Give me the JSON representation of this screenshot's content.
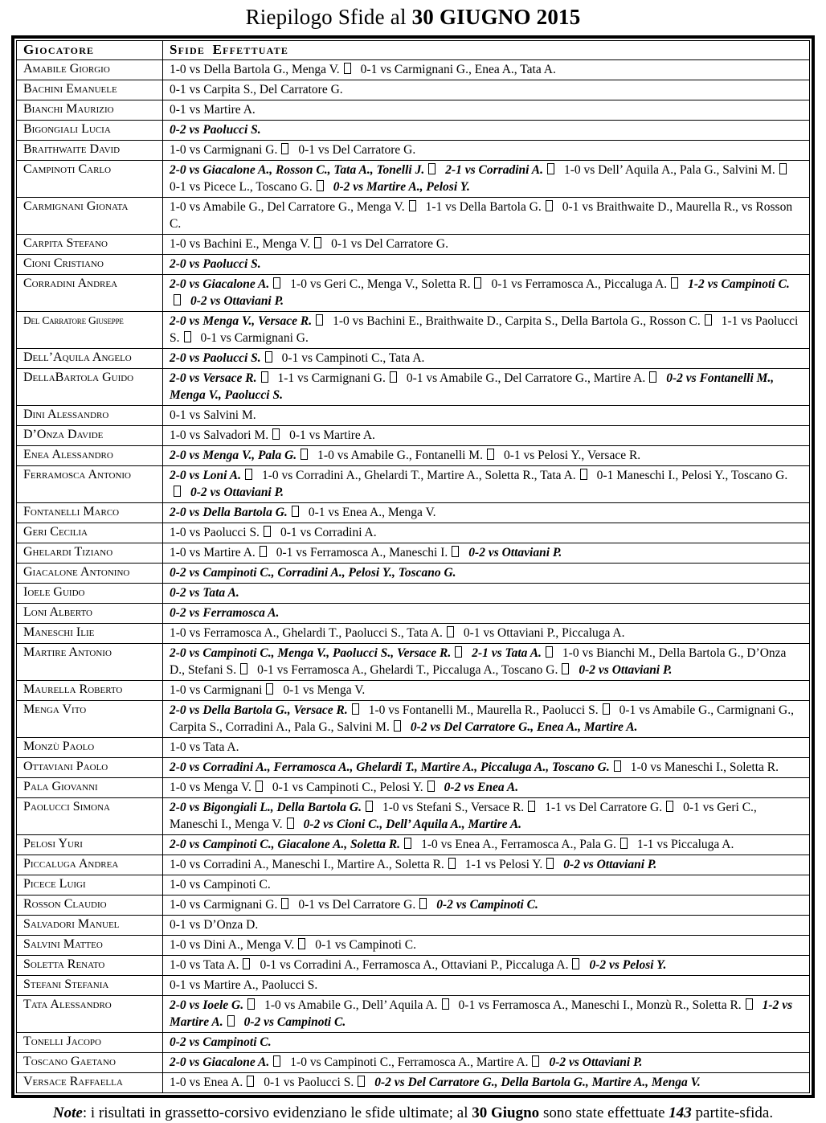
{
  "title": {
    "normal": "Riepilogo Sfide al ",
    "bold": "30 GIUGNO 2015"
  },
  "separator_icon": "empty-box-glyph",
  "colors": {
    "text": "#000000",
    "background": "#ffffff",
    "border": "#000000"
  },
  "table": {
    "col_player": "Giocatore",
    "col_results": "Sfide Effettuate",
    "rows": [
      {
        "player": "Amabile Giorgio",
        "segments": [
          {
            "text": "1-0 vs Della Bartola G., Menga V.",
            "ultimate": false
          },
          {
            "text": "0-1 vs Carmignani G., Enea A., Tata A.",
            "ultimate": false
          }
        ]
      },
      {
        "player": "Bachini Emanuele",
        "segments": [
          {
            "text": "0-1 vs Carpita S., Del Carratore G.",
            "ultimate": false
          }
        ]
      },
      {
        "player": "Bianchi Maurizio",
        "segments": [
          {
            "text": "0-1 vs Martire A.",
            "ultimate": false
          }
        ]
      },
      {
        "player": "Bigongiali Lucia",
        "segments": [
          {
            "text": "0-2 vs Paolucci S.",
            "ultimate": true
          }
        ]
      },
      {
        "player": "Braithwaite David",
        "segments": [
          {
            "text": "1-0 vs Carmignani G.",
            "ultimate": false
          },
          {
            "text": "0-1 vs Del Carratore G.",
            "ultimate": false
          }
        ]
      },
      {
        "player": "Campinoti Carlo",
        "segments": [
          {
            "text": "2-0 vs Giacalone A., Rosson C., Tata A., Tonelli J.",
            "ultimate": true
          },
          {
            "text": "2-1 vs Corradini A.",
            "ultimate": true
          },
          {
            "text": "1-0 vs Dell’ Aquila A., Pala G., Salvini M.",
            "ultimate": false
          },
          {
            "text": "0-1 vs Picece L., Toscano G.",
            "ultimate": false
          },
          {
            "text": "0-2 vs Martire A., Pelosi Y.",
            "ultimate": true
          }
        ]
      },
      {
        "player": "Carmignani Gionata",
        "segments": [
          {
            "text": "1-0 vs Amabile G., Del Carratore G., Menga V.",
            "ultimate": false
          },
          {
            "text": "1-1 vs Della Bartola G.",
            "ultimate": false
          },
          {
            "text": "0-1 vs Braithwaite D., Maurella R., vs Rosson C.",
            "ultimate": false
          }
        ]
      },
      {
        "player": "Carpita Stefano",
        "segments": [
          {
            "text": "1-0 vs Bachini E., Menga V.",
            "ultimate": false
          },
          {
            "text": "0-1 vs Del Carratore G.",
            "ultimate": false
          }
        ]
      },
      {
        "player": "Cioni Cristiano",
        "segments": [
          {
            "text": "2-0 vs Paolucci S.",
            "ultimate": true
          }
        ]
      },
      {
        "player": "Corradini Andrea",
        "segments": [
          {
            "text": "2-0 vs Giacalone A.",
            "ultimate": true
          },
          {
            "text": "1-0 vs Geri C., Menga V., Soletta R.",
            "ultimate": false
          },
          {
            "text": "0-1 vs Ferramosca A., Piccaluga A.",
            "ultimate": false
          },
          {
            "text": "1-2 vs Campinoti C.",
            "ultimate": true
          },
          {
            "text": "0-2 vs Ottaviani P.",
            "ultimate": true
          }
        ]
      },
      {
        "player": "Del Carratore Giuseppe",
        "segments": [
          {
            "text": "2-0 vs Menga V., Versace R.",
            "ultimate": true
          },
          {
            "text": "1-0 vs Bachini E., Braithwaite D., Carpita S., Della Bartola G., Rosson C.",
            "ultimate": false
          },
          {
            "text": "1-1 vs Paolucci S.",
            "ultimate": false
          },
          {
            "text": "0-1 vs Carmignani G.",
            "ultimate": false
          }
        ]
      },
      {
        "player": "Dell’Aquila Angelo",
        "segments": [
          {
            "text": "2-0 vs Paolucci S.",
            "ultimate": true
          },
          {
            "text": "0-1 vs Campinoti C., Tata A.",
            "ultimate": false
          }
        ]
      },
      {
        "player": "DellaBartola Guido",
        "segments": [
          {
            "text": "2-0 vs Versace R.",
            "ultimate": true
          },
          {
            "text": "1-1 vs Carmignani G.",
            "ultimate": false
          },
          {
            "text": "0-1 vs Amabile G., Del Carratore G., Martire A.",
            "ultimate": false
          },
          {
            "text": "0-2 vs Fontanelli M., Menga V., Paolucci S.",
            "ultimate": true
          }
        ]
      },
      {
        "player": "Dini Alessandro",
        "segments": [
          {
            "text": "0-1 vs Salvini M.",
            "ultimate": false
          }
        ]
      },
      {
        "player": "D’Onza Davide",
        "segments": [
          {
            "text": "1-0 vs Salvadori M.",
            "ultimate": false
          },
          {
            "text": "0-1 vs Martire A.",
            "ultimate": false
          }
        ]
      },
      {
        "player": "Enea Alessandro",
        "segments": [
          {
            "text": "2-0 vs Menga V., Pala G.",
            "ultimate": true
          },
          {
            "text": "1-0 vs Amabile G., Fontanelli M.",
            "ultimate": false
          },
          {
            "text": "0-1 vs Pelosi Y., Versace R.",
            "ultimate": false
          }
        ]
      },
      {
        "player": "Ferramosca Antonio",
        "segments": [
          {
            "text": "2-0 vs Loni A.",
            "ultimate": true
          },
          {
            "text": "1-0 vs Corradini A., Ghelardi T., Martire A., Soletta R., Tata A.",
            "ultimate": false
          },
          {
            "text": "0-1 Maneschi I., Pelosi Y., Toscano G.",
            "ultimate": false
          },
          {
            "text": "0-2 vs Ottaviani P.",
            "ultimate": true
          }
        ]
      },
      {
        "player": "Fontanelli Marco",
        "segments": [
          {
            "text": "2-0 vs Della Bartola G.",
            "ultimate": true
          },
          {
            "text": "0-1 vs Enea A., Menga V.",
            "ultimate": false
          }
        ]
      },
      {
        "player": "Geri Cecilia",
        "segments": [
          {
            "text": "1-0 vs Paolucci S.",
            "ultimate": false
          },
          {
            "text": "0-1 vs Corradini A.",
            "ultimate": false
          }
        ]
      },
      {
        "player": "Ghelardi Tiziano",
        "segments": [
          {
            "text": "1-0 vs Martire A.",
            "ultimate": false
          },
          {
            "text": "0-1 vs Ferramosca A., Maneschi I.",
            "ultimate": false
          },
          {
            "text": "0-2 vs Ottaviani P.",
            "ultimate": true
          }
        ]
      },
      {
        "player": "Giacalone Antonino",
        "segments": [
          {
            "text": "0-2 vs Campinoti C., Corradini A., Pelosi Y., Toscano G.",
            "ultimate": true
          }
        ]
      },
      {
        "player": "Ioele Guido",
        "segments": [
          {
            "text": "0-2 vs Tata A.",
            "ultimate": true
          }
        ]
      },
      {
        "player": "Loni Alberto",
        "segments": [
          {
            "text": "0-2 vs Ferramosca A.",
            "ultimate": true
          }
        ]
      },
      {
        "player": "Maneschi Ilie",
        "segments": [
          {
            "text": "1-0 vs Ferramosca A., Ghelardi T., Paolucci S., Tata A.",
            "ultimate": false
          },
          {
            "text": "0-1 vs Ottaviani P., Piccaluga A.",
            "ultimate": false
          }
        ]
      },
      {
        "player": "Martire Antonio",
        "segments": [
          {
            "text": "2-0 vs Campinoti C., Menga V., Paolucci S., Versace R.",
            "ultimate": true
          },
          {
            "text": "2-1 vs Tata A.",
            "ultimate": true
          },
          {
            "text": "1-0 vs Bianchi M., Della Bartola G., D’Onza D., Stefani S.",
            "ultimate": false
          },
          {
            "text": "0-1 vs Ferramosca A., Ghelardi T., Piccaluga A., Toscano G.",
            "ultimate": false
          },
          {
            "text": "0-2 vs Ottaviani P.",
            "ultimate": true
          }
        ]
      },
      {
        "player": "Maurella Roberto",
        "segments": [
          {
            "text": "1-0 vs Carmignani",
            "ultimate": false
          },
          {
            "text": "0-1 vs Menga V.",
            "ultimate": false
          }
        ]
      },
      {
        "player": "Menga Vito",
        "segments": [
          {
            "text": "2-0 vs Della Bartola G., Versace R.",
            "ultimate": true
          },
          {
            "text": "1-0 vs Fontanelli M., Maurella R., Paolucci S.",
            "ultimate": false
          },
          {
            "text": "0-1 vs Amabile G., Carmignani G., Carpita S., Corradini A., Pala G., Salvini M.",
            "ultimate": false
          },
          {
            "text": "0-2 vs Del Carratore G., Enea A., Martire A.",
            "ultimate": true
          }
        ]
      },
      {
        "player": "Monzù Paolo",
        "segments": [
          {
            "text": "1-0 vs Tata A.",
            "ultimate": false
          }
        ]
      },
      {
        "player": "Ottaviani Paolo",
        "segments": [
          {
            "text": "2-0 vs Corradini A., Ferramosca A., Ghelardi T., Martire A., Piccaluga A., Toscano G.",
            "ultimate": true
          },
          {
            "text": "1-0 vs Maneschi I., Soletta R.",
            "ultimate": false
          }
        ]
      },
      {
        "player": "Pala Giovanni",
        "segments": [
          {
            "text": "1-0 vs Menga V.",
            "ultimate": false
          },
          {
            "text": "0-1 vs Campinoti C., Pelosi Y.",
            "ultimate": false
          },
          {
            "text": "0-2 vs Enea A.",
            "ultimate": true
          }
        ]
      },
      {
        "player": "Paolucci Simona",
        "segments": [
          {
            "text": "2-0 vs Bigongiali L., Della Bartola G.",
            "ultimate": true
          },
          {
            "text": "1-0 vs Stefani S., Versace R.",
            "ultimate": false
          },
          {
            "text": "1-1 vs Del Carratore G.",
            "ultimate": false
          },
          {
            "text": "0-1 vs Geri C., Maneschi I., Menga V.",
            "ultimate": false
          },
          {
            "text": "0-2 vs Cioni C., Dell’ Aquila A., Martire A.",
            "ultimate": true
          }
        ]
      },
      {
        "player": "Pelosi Yuri",
        "segments": [
          {
            "text": "2-0 vs Campinoti C., Giacalone A., Soletta R.",
            "ultimate": true
          },
          {
            "text": "1-0 vs Enea A., Ferramosca A., Pala G.",
            "ultimate": false
          },
          {
            "text": "1-1 vs Piccaluga A.",
            "ultimate": false
          }
        ]
      },
      {
        "player": "Piccaluga Andrea",
        "segments": [
          {
            "text": "1-0 vs Corradini A., Maneschi I., Martire A., Soletta R.",
            "ultimate": false
          },
          {
            "text": "1-1 vs Pelosi Y.",
            "ultimate": false
          },
          {
            "text": "0-2 vs Ottaviani P.",
            "ultimate": true
          }
        ]
      },
      {
        "player": "Picece Luigi",
        "segments": [
          {
            "text": "1-0 vs Campinoti C.",
            "ultimate": false
          }
        ]
      },
      {
        "player": "Rosson Claudio",
        "segments": [
          {
            "text": "1-0 vs Carmignani G.",
            "ultimate": false
          },
          {
            "text": "0-1 vs Del Carratore G.",
            "ultimate": false
          },
          {
            "text": "0-2 vs Campinoti C.",
            "ultimate": true
          }
        ]
      },
      {
        "player": "Salvadori Manuel",
        "segments": [
          {
            "text": "0-1 vs D’Onza D.",
            "ultimate": false
          }
        ]
      },
      {
        "player": "Salvini Matteo",
        "segments": [
          {
            "text": "1-0 vs Dini A., Menga V.",
            "ultimate": false
          },
          {
            "text": "0-1 vs Campinoti C.",
            "ultimate": false
          }
        ]
      },
      {
        "player": "Soletta Renato",
        "segments": [
          {
            "text": "1-0 vs Tata A.",
            "ultimate": false
          },
          {
            "text": "0-1 vs Corradini A., Ferramosca A., Ottaviani P., Piccaluga A.",
            "ultimate": false
          },
          {
            "text": "0-2 vs Pelosi Y.",
            "ultimate": true
          }
        ]
      },
      {
        "player": "Stefani Stefania",
        "segments": [
          {
            "text": "0-1 vs Martire A., Paolucci S.",
            "ultimate": false
          }
        ]
      },
      {
        "player": "Tata Alessandro",
        "segments": [
          {
            "text": "2-0 vs Ioele G.",
            "ultimate": true
          },
          {
            "text": "1-0 vs Amabile G., Dell’ Aquila A.",
            "ultimate": false
          },
          {
            "text": "0-1 vs Ferramosca A., Maneschi I., Monzù R., Soletta R.",
            "ultimate": false
          },
          {
            "text": "1-2 vs Martire A.",
            "ultimate": true
          },
          {
            "text": "0-2 vs Campinoti C.",
            "ultimate": true
          }
        ]
      },
      {
        "player": "Tonelli Jacopo",
        "segments": [
          {
            "text": "0-2 vs Campinoti C.",
            "ultimate": true
          }
        ]
      },
      {
        "player": "Toscano Gaetano",
        "segments": [
          {
            "text": "2-0 vs Giacalone A.",
            "ultimate": true
          },
          {
            "text": "1-0 vs Campinoti C., Ferramosca A., Martire A.",
            "ultimate": false
          },
          {
            "text": "0-2 vs Ottaviani P.",
            "ultimate": true
          }
        ]
      },
      {
        "player": "Versace Raffaella",
        "segments": [
          {
            "text": "1-0 vs Enea A.",
            "ultimate": false
          },
          {
            "text": "0-1 vs Paolucci S.",
            "ultimate": false
          },
          {
            "text": "0-2 vs Del Carratore G., Della Bartola G., Martire A., Menga V.",
            "ultimate": true
          }
        ]
      }
    ]
  },
  "note": {
    "segments": [
      {
        "text": "Note",
        "style": "bold-italic"
      },
      {
        "text": ": i risultati in grassetto-corsivo evidenziano le sfide ultimate; al ",
        "style": "normal"
      },
      {
        "text": "30 Giugno",
        "style": "bold"
      },
      {
        "text": " sono state effettuate ",
        "style": "normal"
      },
      {
        "text": "143",
        "style": "bold-italic"
      },
      {
        "text": " partite-sfida.",
        "style": "normal"
      }
    ]
  }
}
